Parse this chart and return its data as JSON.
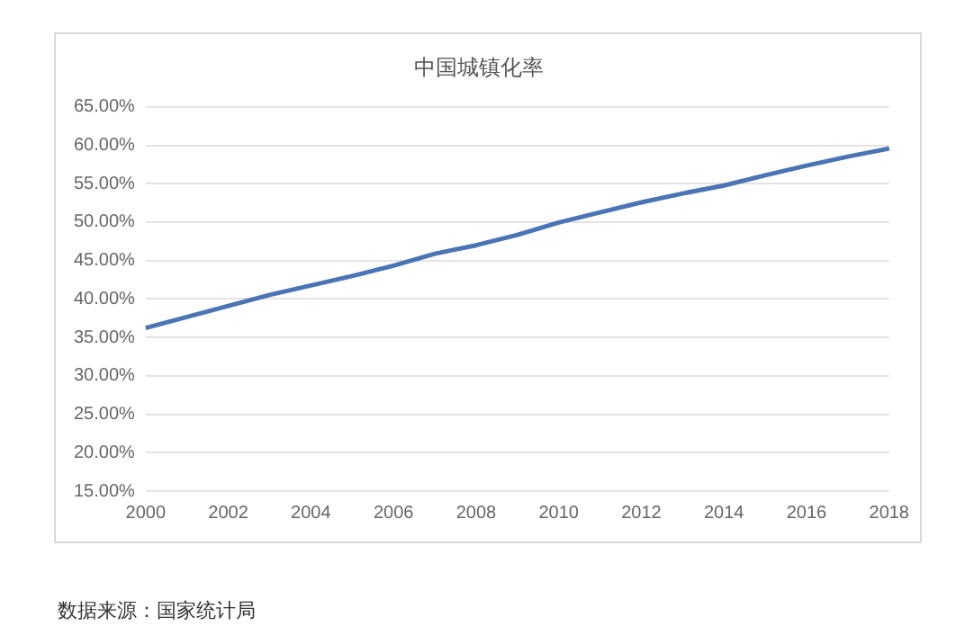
{
  "chart_data": {
    "type": "line",
    "title": "中国城镇化率",
    "categories": [
      "2000",
      null,
      "2002",
      null,
      "2004",
      null,
      "2006",
      null,
      "2008",
      null,
      "2010",
      null,
      "2012",
      null,
      "2014",
      null,
      "2016",
      null,
      "2018"
    ],
    "series": [
      {
        "color": "#4a74b4",
        "values": [
          36.22,
          37.66,
          39.09,
          40.53,
          41.76,
          42.99,
          44.34,
          45.89,
          46.99,
          48.34,
          49.95,
          51.27,
          52.57,
          53.73,
          54.77,
          56.1,
          57.35,
          58.52,
          59.58
        ]
      }
    ],
    "ylim": [
      15,
      65
    ],
    "yticks": [
      {
        "value": 15,
        "label": "15.00%"
      },
      {
        "value": 20,
        "label": "20.00%"
      },
      {
        "value": 25,
        "label": "25.00%"
      },
      {
        "value": 30,
        "label": "30.00%"
      },
      {
        "value": 35,
        "label": "35.00%"
      },
      {
        "value": 40,
        "label": "40.00%"
      },
      {
        "value": 45,
        "label": "45.00%"
      },
      {
        "value": 50,
        "label": "50.00%"
      },
      {
        "value": 55,
        "label": "55.00%"
      },
      {
        "value": 60,
        "label": "60.00%"
      },
      {
        "value": 65,
        "label": "65.00%"
      }
    ],
    "grid": "y",
    "legend": false,
    "marker": "none",
    "line_style": "solid",
    "annotations": [
      "数据来源：国家统计局"
    ]
  }
}
